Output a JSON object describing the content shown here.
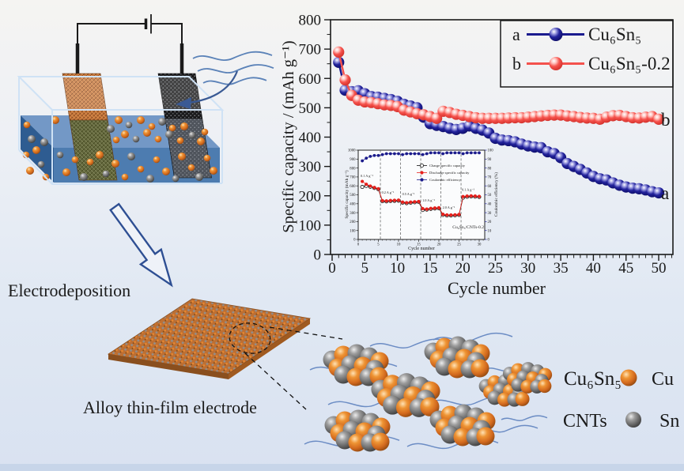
{
  "labels": {
    "electrodeposition": "Electrodeposition",
    "alloy_film": "Alloy thin-film electrode"
  },
  "particle_legend": {
    "cu6sn5": "Cu₆Sn₅",
    "cu": "Cu",
    "cnts": "CNTs",
    "sn": "Sn"
  },
  "colors": {
    "series_a_blue": "#1b1b8e",
    "series_b_red": "#f4524d",
    "cu_orange": "#d2691e",
    "sn_gray": "#6a6a6a",
    "cnt_blue": "#6b8cc4",
    "liquid_blue": "#4d7cb0"
  },
  "chart_data": [
    {
      "type": "line",
      "title": "",
      "xlabel": "Cycle number",
      "ylabel": "Specific capacity / (mAh g⁻¹)",
      "xlim": [
        0,
        52
      ],
      "ylim": [
        0,
        800
      ],
      "xticks": [
        0,
        5,
        10,
        15,
        20,
        25,
        30,
        35,
        40,
        45,
        50
      ],
      "yticks": [
        0,
        100,
        200,
        300,
        400,
        500,
        600,
        700,
        800
      ],
      "x_start": 1,
      "grid": false,
      "legend_position": "top-right",
      "series": [
        {
          "letter": "a",
          "name": "Cu₆Sn₅",
          "color": "#1b1b8e",
          "values": [
            655,
            560,
            555,
            558,
            548,
            538,
            536,
            532,
            528,
            522,
            512,
            506,
            500,
            468,
            446,
            440,
            436,
            430,
            426,
            430,
            438,
            430,
            424,
            414,
            396,
            390,
            388,
            384,
            376,
            370,
            366,
            364,
            350,
            344,
            330,
            310,
            300,
            290,
            278,
            266,
            258,
            254,
            244,
            236,
            230,
            226,
            224,
            220,
            214,
            210
          ]
        },
        {
          "letter": "b",
          "name": "Cu₆Sn₅-0.2",
          "color": "#f4524d",
          "values": [
            690,
            595,
            542,
            526,
            520,
            518,
            514,
            510,
            508,
            504,
            492,
            486,
            480,
            476,
            470,
            464,
            488,
            484,
            478,
            474,
            470,
            466,
            464,
            464,
            464,
            464,
            465,
            466,
            466,
            468,
            470,
            472,
            474,
            475,
            475,
            472,
            470,
            467,
            465,
            464,
            461,
            468,
            473,
            474,
            470,
            466,
            465,
            468,
            470,
            461
          ]
        }
      ]
    },
    {
      "type": "line",
      "xlabel": "Cycle number",
      "ylabel_left": "Specific capacity (mAh g⁻¹)",
      "ylabel_right": "Coulombic efficiency (%)",
      "xlim": [
        0,
        31
      ],
      "ylim_left": [
        0,
        1000
      ],
      "ylim_right": [
        0,
        100
      ],
      "xticks": [
        0,
        5,
        10,
        15,
        20,
        25,
        30
      ],
      "yticks_left": [
        0,
        100,
        200,
        300,
        400,
        500,
        600,
        700,
        800,
        900,
        1000
      ],
      "yticks_right": [
        0,
        10,
        20,
        30,
        40,
        50,
        60,
        70,
        80,
        90,
        100
      ],
      "sample_label": "Cu₆Sn₅/CNTs-0.2",
      "segment_boundaries": [
        5.5,
        10.5,
        15.5,
        20.5,
        25.5
      ],
      "rate_annotations": [
        {
          "text": "0.1 A g⁻¹",
          "x": 0.6,
          "y": 700
        },
        {
          "text": "0.2 A g⁻¹",
          "x": 5.8,
          "y": 515
        },
        {
          "text": "0.5 A g⁻¹",
          "x": 10.9,
          "y": 495
        },
        {
          "text": "1.0 A g⁻¹",
          "x": 15.9,
          "y": 425
        },
        {
          "text": "2.0 A g⁻¹",
          "x": 20.9,
          "y": 345
        },
        {
          "text": "0.1 A g⁻¹",
          "x": 25.7,
          "y": 545
        }
      ],
      "series": [
        {
          "name": "Charge specific capacity",
          "color": "#111111",
          "axis": "left",
          "marker": "open-circle",
          "values": [
            588,
            600,
            590,
            576,
            562,
            428,
            426,
            430,
            432,
            434,
            412,
            406,
            412,
            416,
            419,
            330,
            334,
            342,
            346,
            349,
            274,
            268,
            268,
            270,
            274,
            468,
            478,
            481,
            479,
            476
          ]
        },
        {
          "name": "Discharge specific capacity",
          "color": "#e8211d",
          "axis": "left",
          "marker": "circle",
          "values": [
            650,
            618,
            598,
            582,
            568,
            435,
            432,
            436,
            438,
            440,
            418,
            412,
            418,
            422,
            425,
            345,
            340,
            348,
            352,
            355,
            282,
            275,
            274,
            276,
            280,
            480,
            486,
            488,
            486,
            482
          ]
        },
        {
          "name": "Coulombic efficiency",
          "color": "#1c1c8c",
          "axis": "right",
          "marker": "circle",
          "values": [
            88,
            91,
            93,
            94,
            94,
            95,
            96,
            96,
            96,
            96,
            95,
            96,
            96,
            96,
            96,
            95,
            96,
            97,
            97,
            97,
            96,
            97,
            97,
            97,
            97,
            96,
            97,
            97,
            97,
            97
          ]
        }
      ]
    }
  ]
}
